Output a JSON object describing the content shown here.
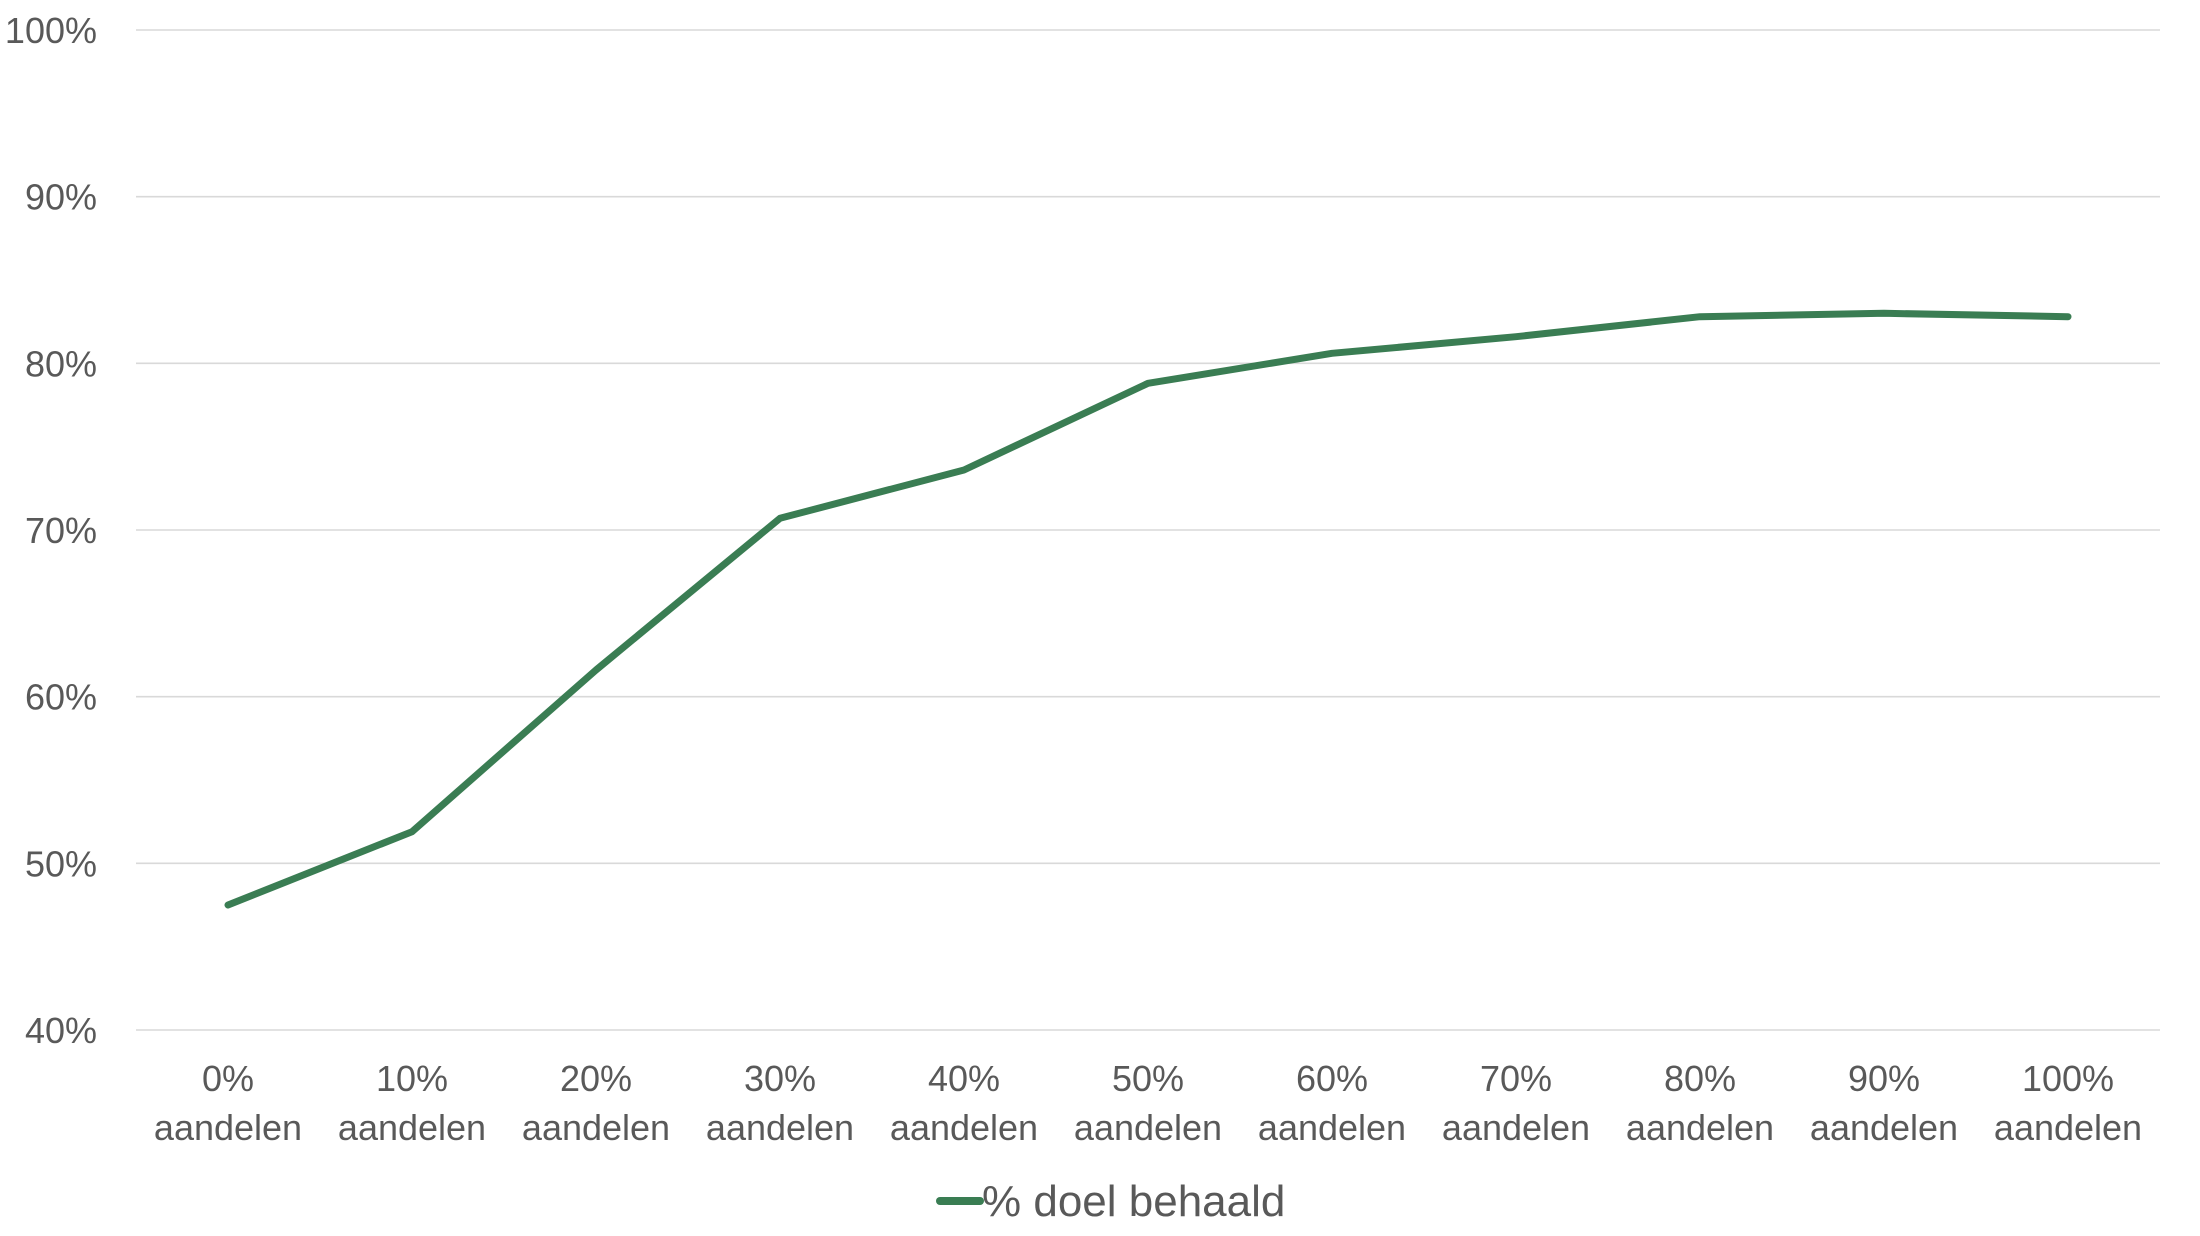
{
  "chart_data": {
    "type": "line",
    "categories": [
      [
        "0%",
        "aandelen"
      ],
      [
        "10%",
        "aandelen"
      ],
      [
        "20%",
        "aandelen"
      ],
      [
        "30%",
        "aandelen"
      ],
      [
        "40%",
        "aandelen"
      ],
      [
        "50%",
        "aandelen"
      ],
      [
        "60%",
        "aandelen"
      ],
      [
        "70%",
        "aandelen"
      ],
      [
        "80%",
        "aandelen"
      ],
      [
        "90%",
        "aandelen"
      ],
      [
        "100%",
        "aandelen"
      ]
    ],
    "series": [
      {
        "name": "% doel behaald",
        "color": "#3a7d53",
        "values": [
          47.5,
          51.9,
          61.6,
          70.7,
          73.6,
          78.8,
          80.6,
          81.6,
          82.8,
          83.0,
          82.8
        ]
      }
    ],
    "yticks": [
      "40%",
      "50%",
      "60%",
      "70%",
      "80%",
      "90%",
      "100%"
    ],
    "ylim": [
      40,
      100
    ],
    "grid": true,
    "legend_position": "bottom"
  }
}
